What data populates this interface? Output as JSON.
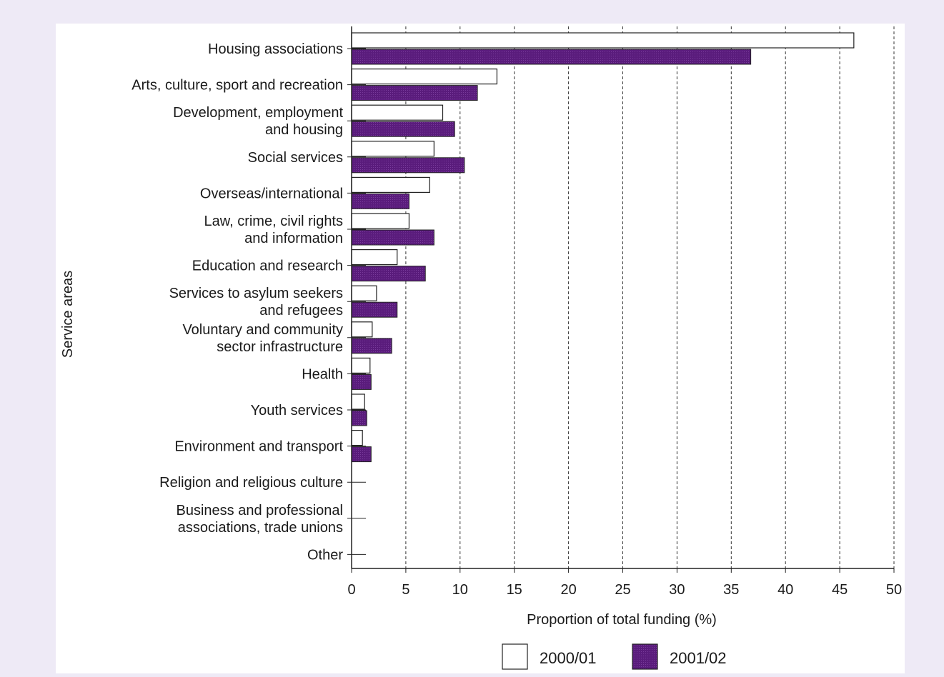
{
  "colors": {
    "page_background": "#eeeaf6",
    "panel_background": "#ffffff",
    "series_2000_01": "#ffffff",
    "series_2001_02": "#5a1c7c",
    "bar_outline": "#222222",
    "grid": "#333333"
  },
  "chart_data": {
    "type": "bar",
    "orientation": "horizontal",
    "title": "",
    "xlabel": "Proportion of total funding (%)",
    "ylabel": "Service areas",
    "xlim": [
      0,
      50
    ],
    "xticks": [
      0,
      5,
      10,
      15,
      20,
      25,
      30,
      35,
      40,
      45,
      50
    ],
    "xtick_labels": [
      "0",
      "5",
      "10",
      "15",
      "20",
      "25",
      "30",
      "35",
      "40",
      "45",
      "50"
    ],
    "grid": "vertical dashed",
    "legend_position": "bottom",
    "categories": [
      [
        "Housing associations"
      ],
      [
        "Arts, culture, sport and recreation"
      ],
      [
        "Development, employment",
        "and housing"
      ],
      [
        "Social services"
      ],
      [
        "Overseas/international"
      ],
      [
        "Law, crime, civil rights",
        "and information"
      ],
      [
        "Education and research"
      ],
      [
        "Services to asylum seekers",
        "and refugees"
      ],
      [
        "Voluntary and community",
        "sector infrastructure"
      ],
      [
        "Health"
      ],
      [
        "Youth services"
      ],
      [
        "Environment and transport"
      ],
      [
        "Religion and religious culture"
      ],
      [
        "Business and professional",
        "associations, trade unions"
      ],
      [
        "Other"
      ]
    ],
    "series": [
      {
        "name": "2000/01",
        "fill": "white",
        "values": [
          46.3,
          13.4,
          8.4,
          7.6,
          7.2,
          5.3,
          4.2,
          2.3,
          1.9,
          1.7,
          1.2,
          1.0,
          0,
          0,
          0
        ]
      },
      {
        "name": "2001/02",
        "fill": "purple",
        "values": [
          36.8,
          11.6,
          9.5,
          10.4,
          5.3,
          7.6,
          6.8,
          4.2,
          3.7,
          1.8,
          1.4,
          1.8,
          0,
          0,
          0
        ]
      }
    ]
  }
}
